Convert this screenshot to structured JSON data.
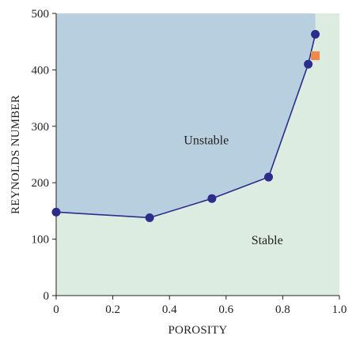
{
  "chart_data": {
    "type": "line",
    "xlabel": "POROSITY",
    "ylabel": "REYNOLDS NUMBER",
    "xlim": [
      0,
      1.0
    ],
    "ylim": [
      0,
      500
    ],
    "x_ticks": [
      "0",
      "0.2",
      "0.4",
      "0.6",
      "0.8",
      "1.0"
    ],
    "y_ticks": [
      "0",
      "100",
      "200",
      "300",
      "400",
      "500"
    ],
    "grid": false,
    "series": [
      {
        "marker": "circle",
        "color": "#2c2c8c",
        "points": [
          {
            "x": 0.0,
            "y": 148
          },
          {
            "x": 0.33,
            "y": 138
          },
          {
            "x": 0.55,
            "y": 172
          },
          {
            "x": 0.75,
            "y": 210
          },
          {
            "x": 0.89,
            "y": 410
          },
          {
            "x": 0.915,
            "y": 463
          }
        ]
      },
      {
        "marker": "square",
        "color": "#f08a48",
        "points": [
          {
            "x": 0.915,
            "y": 425
          }
        ]
      }
    ],
    "regions": [
      {
        "label": "Unstable",
        "label_at": {
          "x": 0.53,
          "y": 275
        },
        "color": "#b8cfdf"
      },
      {
        "label": "Stable",
        "label_at": {
          "x": 0.745,
          "y": 98
        },
        "color": "#dcece0"
      }
    ]
  }
}
